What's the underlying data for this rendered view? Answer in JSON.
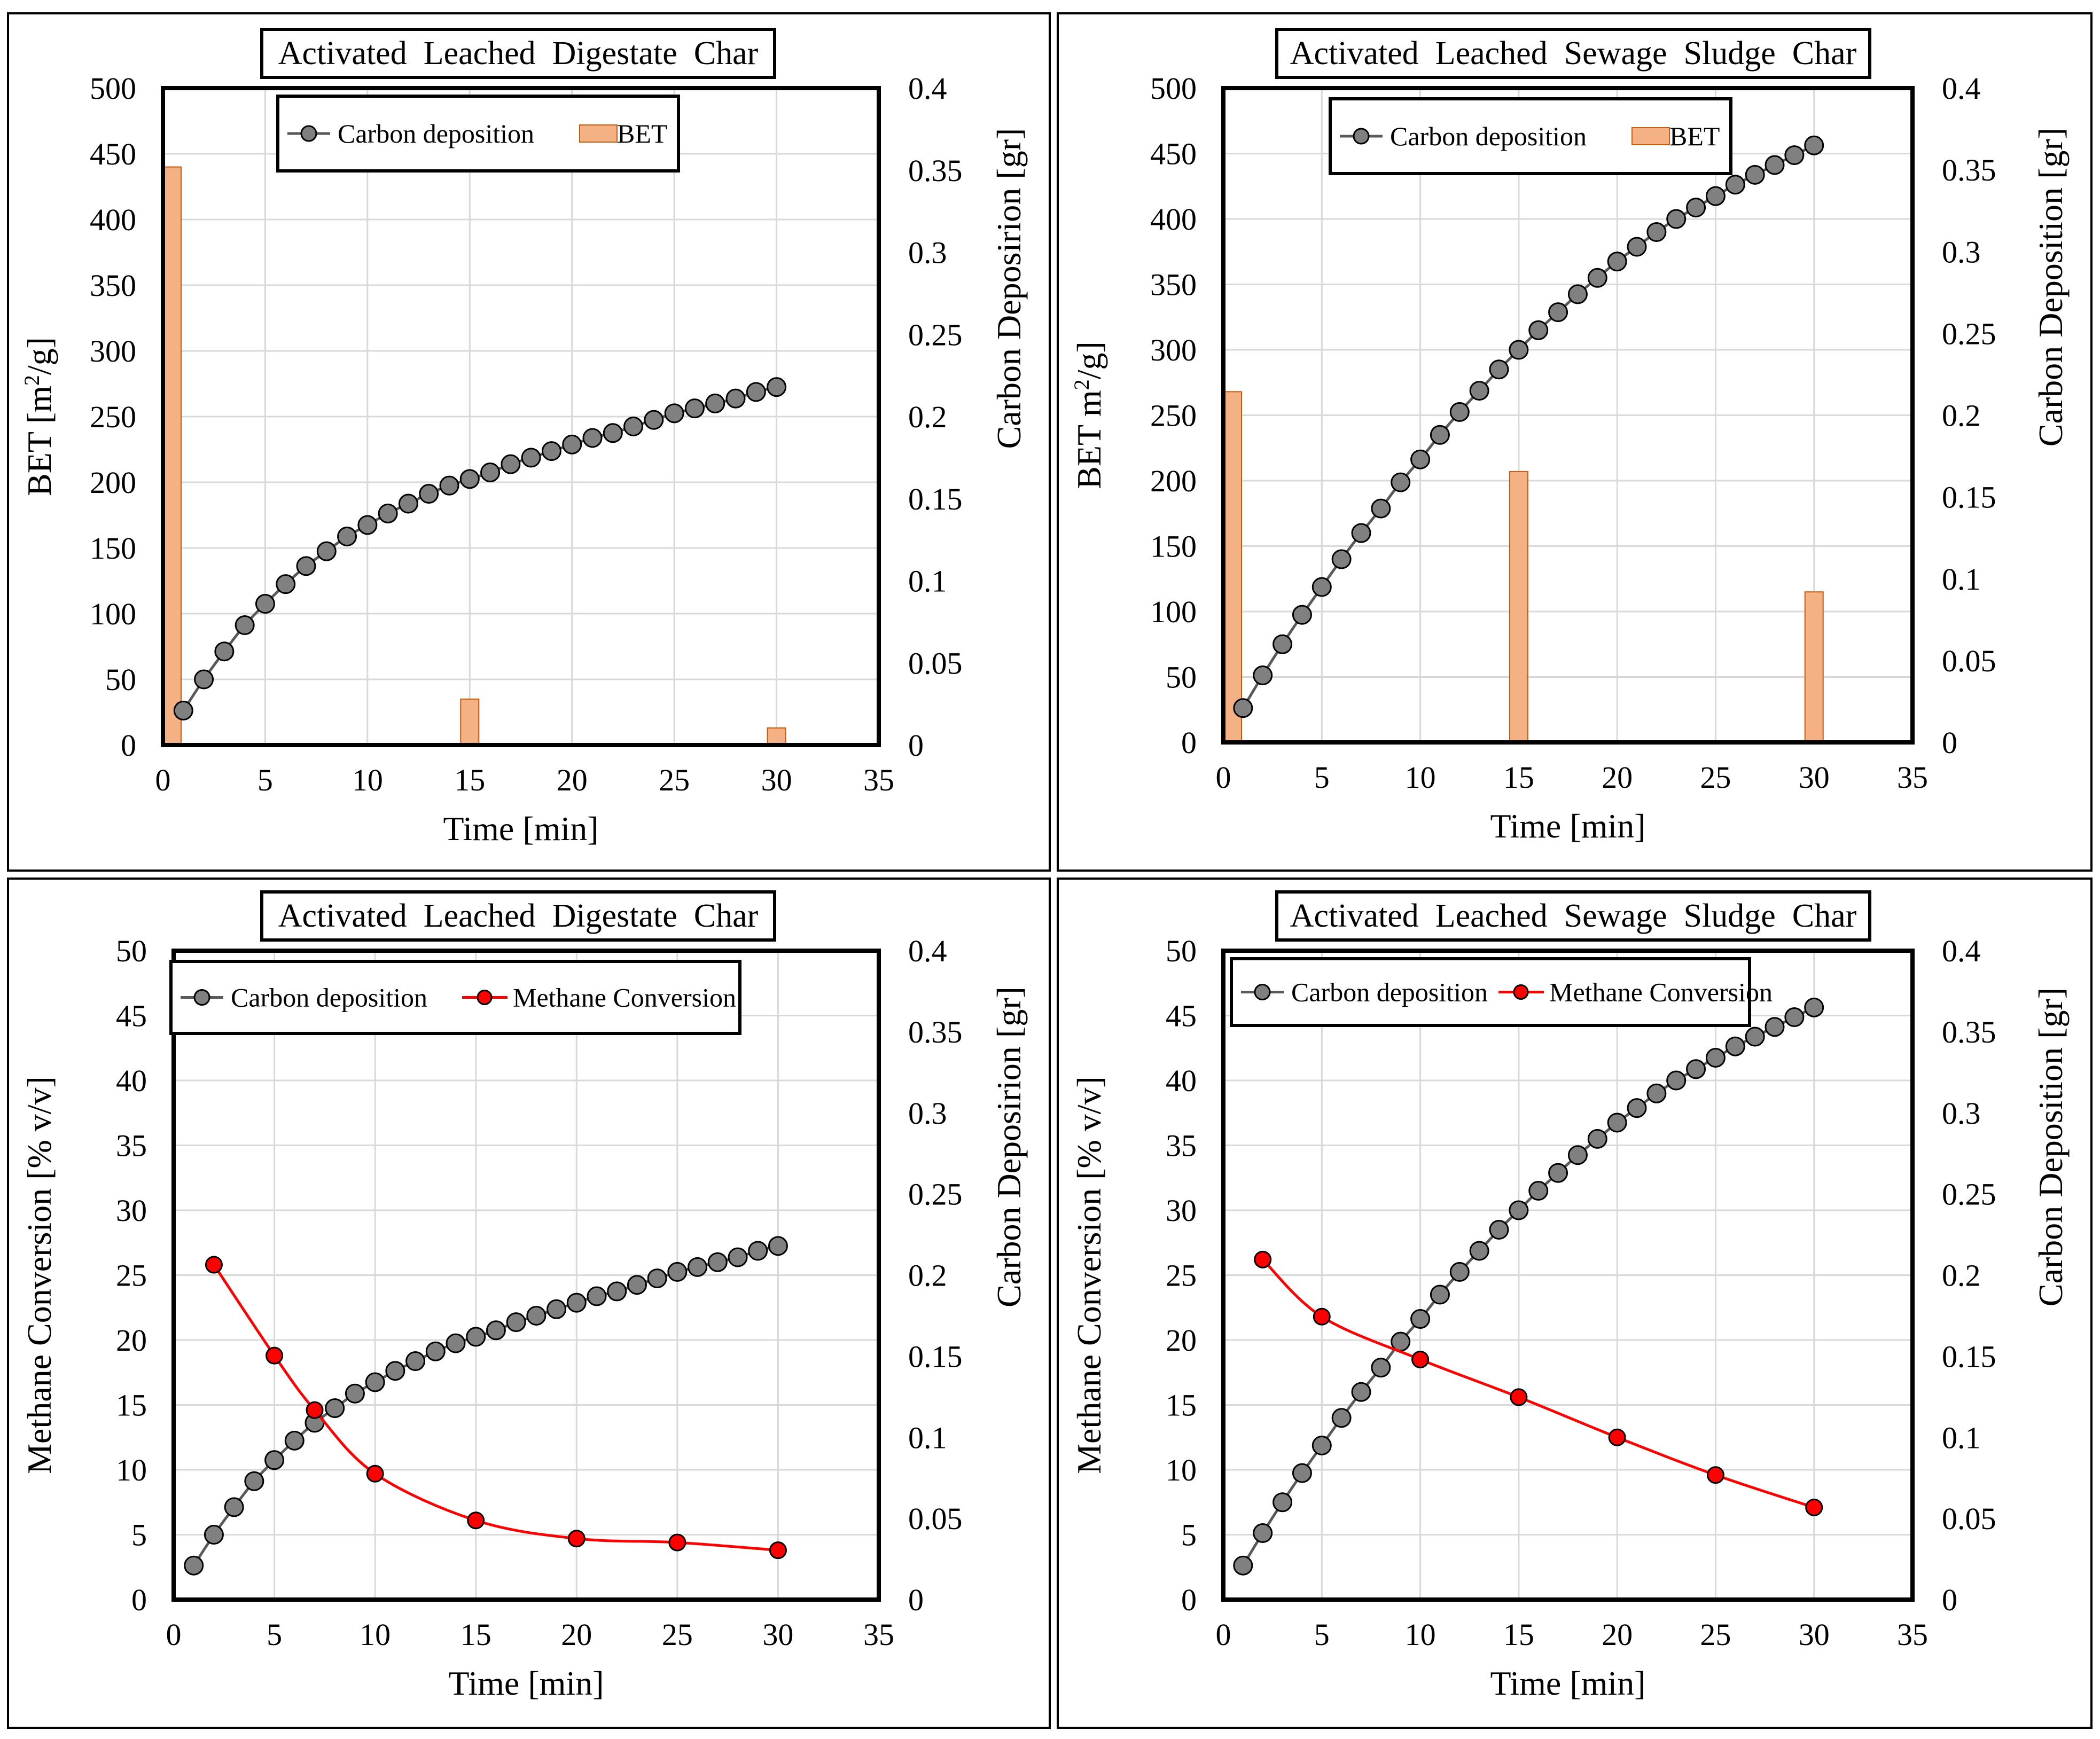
{
  "colors": {
    "bar_fill": "#F4B183",
    "bar_stroke": "#C55A11",
    "carbon_marker": "#808080",
    "carbon_line": "#595959",
    "methane": "#FF0000",
    "grid": "#D9D9D9"
  },
  "chart_data": [
    {
      "type": "bar+line",
      "title": "Activated  Leached  Digestate  Char",
      "xlabel": "Time [min]",
      "ylabel_left": "BET [m²/g]",
      "ylabel_right": "Carbon  Deposirion  [gr]",
      "xlim": [
        0,
        35
      ],
      "ylim_left": [
        0,
        500
      ],
      "ylim_right": [
        0,
        0.4
      ],
      "x_ticks": [
        "0",
        "5",
        "10",
        "15",
        "20",
        "25",
        "30",
        "35"
      ],
      "left_ticks": [
        "0",
        "50",
        "100",
        "150",
        "200",
        "250",
        "300",
        "350",
        "400",
        "450",
        "500"
      ],
      "right_ticks": [
        "0",
        "0.05",
        "0.1",
        "0.15",
        "0.2",
        "0.25",
        "0.3",
        "0.35",
        "0.4"
      ],
      "grid": true,
      "legend": [
        "Carbon deposition",
        "BET"
      ],
      "bars": {
        "name": "BET",
        "x": [
          0,
          15,
          30
        ],
        "values": [
          440,
          35,
          13
        ]
      },
      "series": [
        {
          "name": "Carbon deposition",
          "axis": "right",
          "x": [
            1,
            2,
            3,
            4,
            5,
            6,
            7,
            8,
            9,
            10,
            11,
            12,
            13,
            14,
            15,
            16,
            17,
            18,
            19,
            20,
            21,
            22,
            23,
            24,
            25,
            26,
            27,
            28,
            29,
            30
          ],
          "values": [
            0.021,
            0.04,
            0.057,
            0.073,
            0.086,
            0.098,
            0.109,
            0.118,
            0.127,
            0.134,
            0.141,
            0.147,
            0.153,
            0.158,
            0.162,
            0.166,
            0.171,
            0.175,
            0.179,
            0.183,
            0.187,
            0.19,
            0.194,
            0.198,
            0.202,
            0.205,
            0.208,
            0.211,
            0.215,
            0.218
          ]
        }
      ]
    },
    {
      "type": "bar+line",
      "title": "Activated  Leached  Sewage  Sludge  Char",
      "xlabel": "Time [min]",
      "ylabel_left": "BET m²/g]",
      "ylabel_right": "Carbon  Deposition  [gr]",
      "xlim": [
        0,
        35
      ],
      "ylim_left": [
        0,
        500
      ],
      "ylim_right": [
        0,
        0.4
      ],
      "x_ticks": [
        "0",
        "5",
        "10",
        "15",
        "20",
        "25",
        "30",
        "35"
      ],
      "left_ticks": [
        "0",
        "50",
        "100",
        "150",
        "200",
        "250",
        "300",
        "350",
        "400",
        "450",
        "500"
      ],
      "right_ticks": [
        "0",
        "0.05",
        "0.1",
        "0.15",
        "0.2",
        "0.25",
        "0.3",
        "0.35",
        "0.4"
      ],
      "grid": true,
      "legend": [
        "Carbon deposition",
        "BET"
      ],
      "bars": {
        "name": "BET",
        "x": [
          0,
          15,
          30
        ],
        "values": [
          268,
          207,
          115
        ]
      },
      "series": [
        {
          "name": "Carbon deposition",
          "axis": "right",
          "x": [
            1,
            2,
            3,
            4,
            5,
            6,
            7,
            8,
            9,
            10,
            11,
            12,
            13,
            14,
            15,
            16,
            17,
            18,
            19,
            20,
            21,
            22,
            23,
            24,
            25,
            26,
            27,
            28,
            29,
            30
          ],
          "values": [
            0.021,
            0.041,
            0.06,
            0.078,
            0.095,
            0.112,
            0.128,
            0.143,
            0.159,
            0.173,
            0.188,
            0.202,
            0.215,
            0.228,
            0.24,
            0.252,
            0.263,
            0.274,
            0.284,
            0.294,
            0.303,
            0.312,
            0.32,
            0.327,
            0.334,
            0.341,
            0.347,
            0.353,
            0.359,
            0.365
          ]
        }
      ]
    },
    {
      "type": "line",
      "title": "Activated  Leached  Digestate  Char",
      "xlabel": "Time [min]",
      "ylabel_left": "Methane  Conversion  [% v/v]",
      "ylabel_right": "Carbon  Deposirion  [gr]",
      "xlim": [
        0,
        35
      ],
      "ylim_left": [
        0,
        50
      ],
      "ylim_right": [
        0,
        0.4
      ],
      "x_ticks": [
        "0",
        "5",
        "10",
        "15",
        "20",
        "25",
        "30",
        "35"
      ],
      "left_ticks": [
        "0",
        "5",
        "10",
        "15",
        "20",
        "25",
        "30",
        "35",
        "40",
        "45",
        "50"
      ],
      "right_ticks": [
        "0",
        "0.05",
        "0.1",
        "0.15",
        "0.2",
        "0.25",
        "0.3",
        "0.35",
        "0.4"
      ],
      "grid": true,
      "legend": [
        "Carbon deposition",
        "Methane Conversion"
      ],
      "series": [
        {
          "name": "Carbon deposition",
          "axis": "right",
          "x": [
            1,
            2,
            3,
            4,
            5,
            6,
            7,
            8,
            9,
            10,
            11,
            12,
            13,
            14,
            15,
            16,
            17,
            18,
            19,
            20,
            21,
            22,
            23,
            24,
            25,
            26,
            27,
            28,
            29,
            30
          ],
          "values": [
            0.021,
            0.04,
            0.057,
            0.073,
            0.086,
            0.098,
            0.109,
            0.118,
            0.127,
            0.134,
            0.141,
            0.147,
            0.153,
            0.158,
            0.162,
            0.166,
            0.171,
            0.175,
            0.179,
            0.183,
            0.187,
            0.19,
            0.194,
            0.198,
            0.202,
            0.205,
            0.208,
            0.211,
            0.215,
            0.218
          ]
        },
        {
          "name": "Methane Conversion",
          "axis": "left",
          "x": [
            2,
            5,
            7,
            10,
            15,
            20,
            25,
            30
          ],
          "values": [
            25.8,
            18.8,
            14.6,
            9.7,
            6.1,
            4.7,
            4.4,
            3.8
          ]
        }
      ]
    },
    {
      "type": "line",
      "title": "Activated  Leached  Sewage  Sludge  Char",
      "xlabel": "Time [min]",
      "ylabel_left": "Methane  Conversion  [% v/v]",
      "ylabel_right": "Carbon  Deposition  [gr]",
      "xlim": [
        0,
        35
      ],
      "ylim_left": [
        0,
        50
      ],
      "ylim_right": [
        0,
        0.4
      ],
      "x_ticks": [
        "0",
        "5",
        "10",
        "15",
        "20",
        "25",
        "30",
        "35"
      ],
      "left_ticks": [
        "0",
        "5",
        "10",
        "15",
        "20",
        "25",
        "30",
        "35",
        "40",
        "45",
        "50"
      ],
      "right_ticks": [
        "0",
        "0.05",
        "0.1",
        "0.15",
        "0.2",
        "0.25",
        "0.3",
        "0.35",
        "0.4"
      ],
      "grid": true,
      "legend": [
        "Carbon deposition",
        "Methane Conversion"
      ],
      "series": [
        {
          "name": "Carbon deposition",
          "axis": "right",
          "x": [
            1,
            2,
            3,
            4,
            5,
            6,
            7,
            8,
            9,
            10,
            11,
            12,
            13,
            14,
            15,
            16,
            17,
            18,
            19,
            20,
            21,
            22,
            23,
            24,
            25,
            26,
            27,
            28,
            29,
            30
          ],
          "values": [
            0.021,
            0.041,
            0.06,
            0.078,
            0.095,
            0.112,
            0.128,
            0.143,
            0.159,
            0.173,
            0.188,
            0.202,
            0.215,
            0.228,
            0.24,
            0.252,
            0.263,
            0.274,
            0.284,
            0.294,
            0.303,
            0.312,
            0.32,
            0.327,
            0.334,
            0.341,
            0.347,
            0.353,
            0.359,
            0.365
          ]
        },
        {
          "name": "Methane Conversion",
          "axis": "left",
          "x": [
            2,
            5,
            10,
            15,
            20,
            25,
            30
          ],
          "values": [
            26.2,
            21.8,
            18.5,
            15.6,
            12.5,
            9.6,
            7.1
          ]
        }
      ]
    }
  ]
}
